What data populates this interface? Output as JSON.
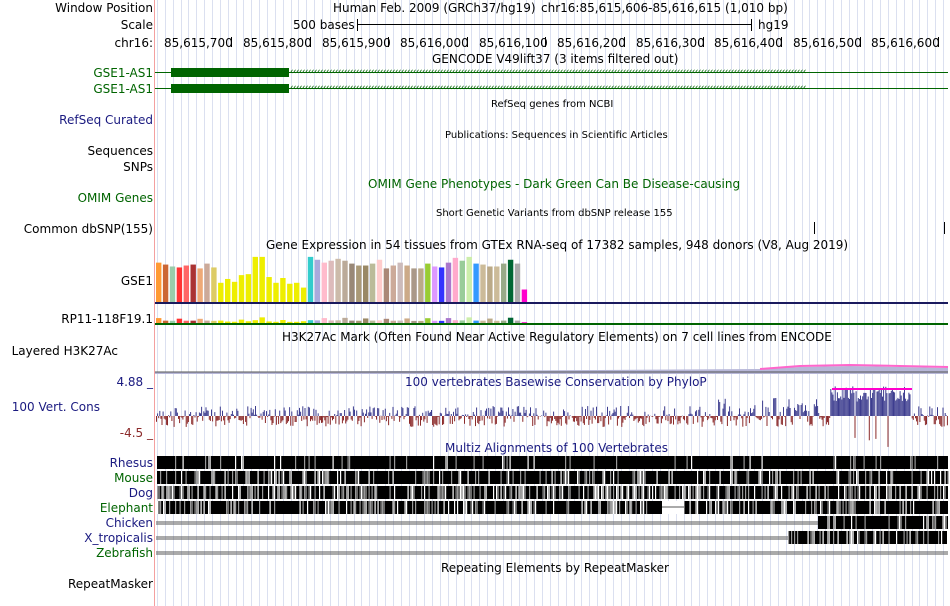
{
  "header": {
    "window_position_label": "Window Position",
    "scale_label": "Scale",
    "chrom_label": "chr16:",
    "assembly_text": "Human Feb. 2009 (GRCh37/hg19)",
    "position_text": "chr16:85,615,606-85,616,615 (1,010 bp)",
    "scale_text": "500 bases",
    "db_text": "hg19"
  },
  "ruler_ticks": [
    "85,615,700",
    "85,615,800",
    "85,615,900",
    "85,616,000",
    "85,616,100",
    "85,616,200",
    "85,616,300",
    "85,616,400",
    "85,616,500",
    "85,616,600"
  ],
  "tracks": {
    "gencode": {
      "title": "GENCODE V49lift37 (3 items filtered out)",
      "items": [
        "GSE1-AS1",
        "GSE1-AS1"
      ]
    },
    "refseq": {
      "title": "RefSeq genes from NCBI",
      "label": "RefSeq Curated"
    },
    "publications": {
      "title": "Publications: Sequences in Scientific Articles",
      "label1": "Sequences",
      "label2": "SNPs"
    },
    "omim": {
      "title": "OMIM Gene Phenotypes - Dark Green Can Be Disease-causing",
      "label": "OMIM Genes"
    },
    "dbsnp": {
      "title": "Short Genetic Variants from dbSNP release 155",
      "label": "Common dbSNP(155)"
    },
    "gtex": {
      "title": "Gene Expression in 54 tissues from GTEx RNA-seq of 17382 samples, 948 donors (V8, Aug 2019)",
      "gene1": "GSE1",
      "gene2": "RP11-118F19.1"
    },
    "h3k27ac": {
      "title": "H3K27Ac Mark (Often Found Near Active Regulatory Elements) on 7 cell lines from ENCODE",
      "label": "Layered H3K27Ac"
    },
    "phylop": {
      "title": "100 vertebrates Basewise Conservation by PhyloP",
      "label": "100 Vert. Cons",
      "max": "4.88 _",
      "min": "-4.5 _"
    },
    "multiz": {
      "title": "Multiz Alignments of 100 Vertebrates",
      "species": [
        "Rhesus",
        "Mouse",
        "Dog",
        "Elephant",
        "Chicken",
        "X_tropicalis",
        "Zebrafish"
      ]
    },
    "repeatmasker": {
      "title": "Repeating Elements by RepeatMasker",
      "label": "RepeatMasker"
    }
  },
  "colors": {
    "gene_green": "#006400",
    "label_blue": "#1a1a80",
    "phylop_pos": "#3d3d8f",
    "phylop_neg": "#8b2a2a",
    "gtex_line": "#1a1a5e"
  },
  "gtex_values": [
    {
      "v": 0.82,
      "c": "#ff9933"
    },
    {
      "v": 0.78,
      "c": "#cc6633"
    },
    {
      "v": 0.74,
      "c": "#99ccaa"
    },
    {
      "v": 0.72,
      "c": "#ff3333"
    },
    {
      "v": 0.76,
      "c": "#ff6666"
    },
    {
      "v": 0.78,
      "c": "#aa3333"
    },
    {
      "v": 0.7,
      "c": "#eeaa77"
    },
    {
      "v": 0.8,
      "c": "#ccaa99"
    },
    {
      "v": 0.72,
      "c": "#ddcc66"
    },
    {
      "v": 0.4,
      "c": "#eeee00"
    },
    {
      "v": 0.48,
      "c": "#eeee00"
    },
    {
      "v": 0.42,
      "c": "#eeee00"
    },
    {
      "v": 0.56,
      "c": "#eeee00"
    },
    {
      "v": 0.58,
      "c": "#eeee00"
    },
    {
      "v": 0.94,
      "c": "#eeee00"
    },
    {
      "v": 0.94,
      "c": "#eeee00"
    },
    {
      "v": 0.52,
      "c": "#eeee00"
    },
    {
      "v": 0.4,
      "c": "#eeee00"
    },
    {
      "v": 0.5,
      "c": "#eeee00"
    },
    {
      "v": 0.38,
      "c": "#eeee00"
    },
    {
      "v": 0.4,
      "c": "#eeee00"
    },
    {
      "v": 0.3,
      "c": "#eeee00"
    },
    {
      "v": 0.94,
      "c": "#33cccc"
    },
    {
      "v": 0.88,
      "c": "#aaaadd"
    },
    {
      "v": 0.82,
      "c": "#ffbbcc"
    },
    {
      "v": 0.86,
      "c": "#ddbbbb"
    },
    {
      "v": 0.9,
      "c": "#ccbbaa"
    },
    {
      "v": 0.86,
      "c": "#bbaa99"
    },
    {
      "v": 0.8,
      "c": "#998877"
    },
    {
      "v": 0.76,
      "c": "#aa9977"
    },
    {
      "v": 0.76,
      "c": "#998866"
    },
    {
      "v": 0.8,
      "c": "#bbbb99"
    },
    {
      "v": 0.88,
      "c": "#ffcccc"
    },
    {
      "v": 0.7,
      "c": "#aa8877"
    },
    {
      "v": 0.76,
      "c": "#ccaa99"
    },
    {
      "v": 0.82,
      "c": "#ccbbbb"
    },
    {
      "v": 0.76,
      "c": "#ccaa88"
    },
    {
      "v": 0.7,
      "c": "#aa9988"
    },
    {
      "v": 0.7,
      "c": "#bbaa88"
    },
    {
      "v": 0.8,
      "c": "#99cc33"
    },
    {
      "v": 0.74,
      "c": "#dd99ff"
    },
    {
      "v": 0.72,
      "c": "#3333ff"
    },
    {
      "v": 0.82,
      "c": "#aa77cc"
    },
    {
      "v": 0.92,
      "c": "#ffaacc"
    },
    {
      "v": 0.86,
      "c": "#99cc99"
    },
    {
      "v": 0.94,
      "c": "#cceeaa"
    },
    {
      "v": 0.8,
      "c": "#3399ff"
    },
    {
      "v": 0.78,
      "c": "#ccbb99"
    },
    {
      "v": 0.74,
      "c": "#bbaa88"
    },
    {
      "v": 0.74,
      "c": "#ccbb99"
    },
    {
      "v": 0.8,
      "c": "#99aa88"
    },
    {
      "v": 0.88,
      "c": "#006633"
    },
    {
      "v": 0.8,
      "c": "#aaaaaa"
    },
    {
      "v": 0.26,
      "c": "#ff00cc"
    }
  ]
}
